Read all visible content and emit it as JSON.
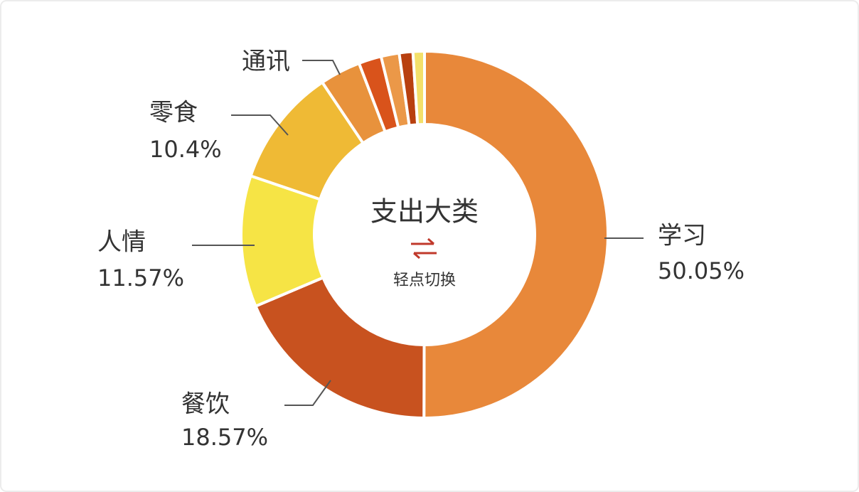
{
  "chart_data": {
    "type": "donut",
    "center_title": "支出大类",
    "center_hint": "轻点切换",
    "categories": [
      "学习",
      "餐饮",
      "人情",
      "零食",
      "通讯",
      null,
      null,
      null,
      null
    ],
    "values": [
      50.05,
      18.57,
      11.57,
      10.4,
      3.6,
      2.0,
      1.6,
      1.2,
      1.01
    ],
    "value_labels": [
      "50.05%",
      "18.57%",
      "11.57%",
      "10.4%",
      null,
      null,
      null,
      null,
      null
    ],
    "colors": [
      "#e8883a",
      "#c8521f",
      "#f6e445",
      "#efba35",
      "#e8923c",
      "#d9531b",
      "#eb9848",
      "#b8400f",
      "#f3e06a"
    ]
  }
}
